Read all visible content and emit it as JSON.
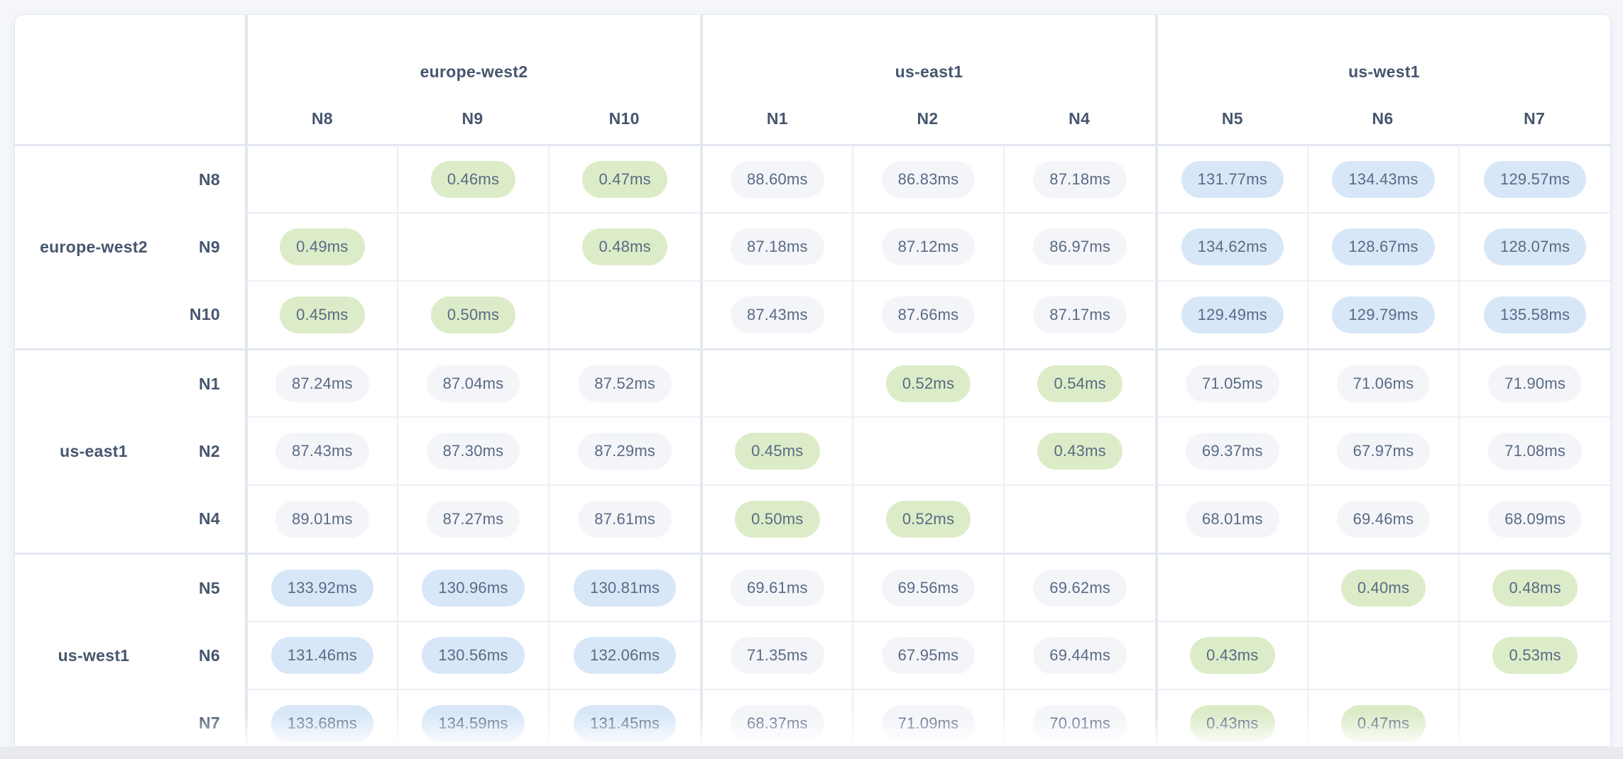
{
  "page": {
    "background_color": "#f4f6fa",
    "card_color": "#ffffff"
  },
  "colors": {
    "low_latency_pill": "#dcecc8",
    "mid_latency_pill": "#f3f5f9",
    "high_latency_pill": "#d8e7f8",
    "header_text": "#46566f",
    "value_text": "#5a6a84",
    "group_border": "#e2e7ef",
    "row_border": "#ecf0f5"
  },
  "matrix": {
    "unit": "ms",
    "column_groups": [
      {
        "region": "europe-west2",
        "nodes": [
          "N8",
          "N9",
          "N10"
        ]
      },
      {
        "region": "us-east1",
        "nodes": [
          "N1",
          "N2",
          "N4"
        ]
      },
      {
        "region": "us-west1",
        "nodes": [
          "N5",
          "N6",
          "N7"
        ]
      }
    ],
    "row_groups": [
      {
        "region": "europe-west2",
        "rows": [
          {
            "node": "N8",
            "values": [
              null,
              "0.46ms",
              "0.47ms",
              "88.60ms",
              "86.83ms",
              "87.18ms",
              "131.77ms",
              "134.43ms",
              "129.57ms"
            ]
          },
          {
            "node": "N9",
            "values": [
              "0.49ms",
              null,
              "0.48ms",
              "87.18ms",
              "87.12ms",
              "86.97ms",
              "134.62ms",
              "128.67ms",
              "128.07ms"
            ]
          },
          {
            "node": "N10",
            "values": [
              "0.45ms",
              "0.50ms",
              null,
              "87.43ms",
              "87.66ms",
              "87.17ms",
              "129.49ms",
              "129.79ms",
              "135.58ms"
            ]
          }
        ]
      },
      {
        "region": "us-east1",
        "rows": [
          {
            "node": "N1",
            "values": [
              "87.24ms",
              "87.04ms",
              "87.52ms",
              null,
              "0.52ms",
              "0.54ms",
              "71.05ms",
              "71.06ms",
              "71.90ms"
            ]
          },
          {
            "node": "N2",
            "values": [
              "87.43ms",
              "87.30ms",
              "87.29ms",
              "0.45ms",
              null,
              "0.43ms",
              "69.37ms",
              "67.97ms",
              "71.08ms"
            ]
          },
          {
            "node": "N4",
            "values": [
              "89.01ms",
              "87.27ms",
              "87.61ms",
              "0.50ms",
              "0.52ms",
              null,
              "68.01ms",
              "69.46ms",
              "68.09ms"
            ]
          }
        ]
      },
      {
        "region": "us-west1",
        "rows": [
          {
            "node": "N5",
            "values": [
              "133.92ms",
              "130.96ms",
              "130.81ms",
              "69.61ms",
              "69.56ms",
              "69.62ms",
              null,
              "0.40ms",
              "0.48ms"
            ]
          },
          {
            "node": "N6",
            "values": [
              "131.46ms",
              "130.56ms",
              "132.06ms",
              "71.35ms",
              "67.95ms",
              "69.44ms",
              "0.43ms",
              null,
              "0.53ms"
            ]
          },
          {
            "node": "N7",
            "values": [
              "133.68ms",
              "134.59ms",
              "131.45ms",
              "68.37ms",
              "71.09ms",
              "70.01ms",
              "0.43ms",
              "0.47ms",
              null
            ]
          }
        ]
      }
    ]
  }
}
